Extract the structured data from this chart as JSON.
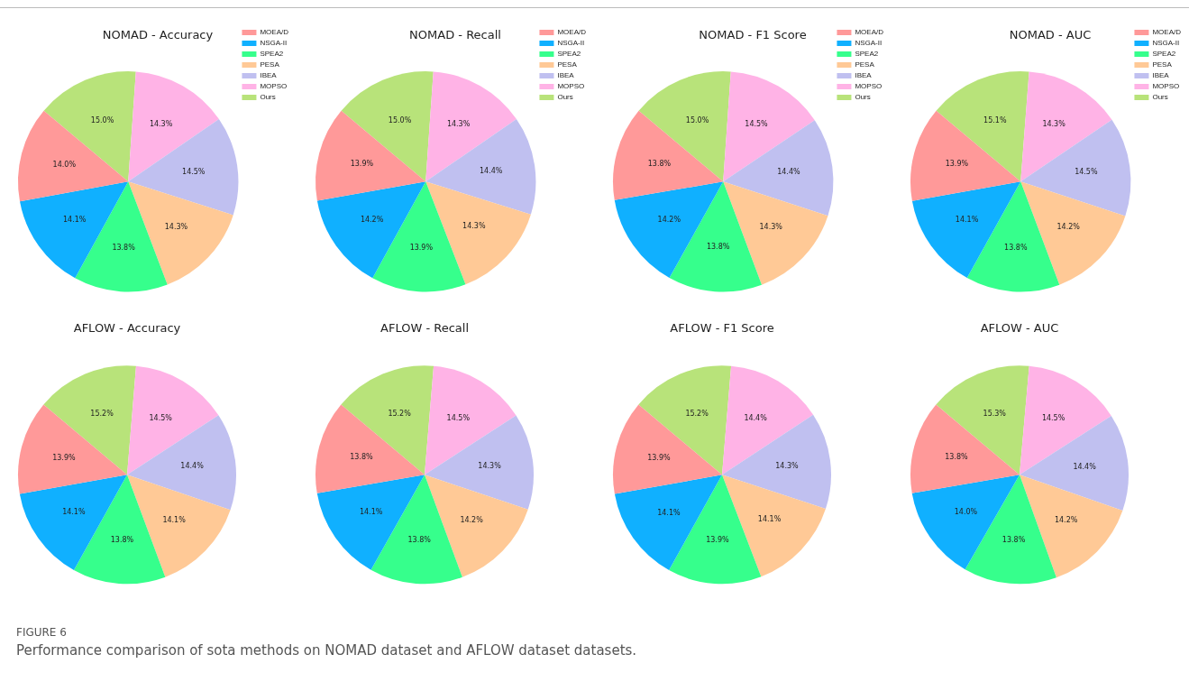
{
  "chart_data": [
    {
      "type": "pie",
      "title": "NOMAD - Accuracy",
      "legend": "top right",
      "categories": [
        "MOEA/D",
        "NSGA-II",
        "SPEA2",
        "PESA",
        "IBEA",
        "MOPSO",
        "Ours"
      ],
      "colors": [
        "#ff9999",
        "#10b0ff",
        "#36ff8c",
        "#ffc996",
        "#c0c0f0",
        "#ffb3e6",
        "#b8e37a"
      ],
      "values": [
        14.0,
        14.1,
        13.8,
        14.3,
        14.5,
        14.3,
        15.0
      ],
      "value_labels": [
        "14.0%",
        "14.1%",
        "13.8%",
        "14.3%",
        "14.5%",
        "14.3%",
        "15.0%"
      ]
    },
    {
      "type": "pie",
      "title": "NOMAD - Recall",
      "legend": "top right",
      "categories": [
        "MOEA/D",
        "NSGA-II",
        "SPEA2",
        "PESA",
        "IBEA",
        "MOPSO",
        "Ours"
      ],
      "colors": [
        "#ff9999",
        "#10b0ff",
        "#36ff8c",
        "#ffc996",
        "#c0c0f0",
        "#ffb3e6",
        "#b8e37a"
      ],
      "values": [
        13.9,
        14.2,
        13.9,
        14.3,
        14.4,
        14.3,
        15.0
      ],
      "value_labels": [
        "13.9%",
        "14.2%",
        "13.9%",
        "14.3%",
        "14.4%",
        "14.3%",
        "15.0%"
      ]
    },
    {
      "type": "pie",
      "title": "NOMAD - F1 Score",
      "legend": "top right",
      "categories": [
        "MOEA/D",
        "NSGA-II",
        "SPEA2",
        "PESA",
        "IBEA",
        "MOPSO",
        "Ours"
      ],
      "colors": [
        "#ff9999",
        "#10b0ff",
        "#36ff8c",
        "#ffc996",
        "#c0c0f0",
        "#ffb3e6",
        "#b8e37a"
      ],
      "values": [
        13.8,
        14.2,
        13.8,
        14.3,
        14.4,
        14.5,
        15.0
      ],
      "value_labels": [
        "13.8%",
        "14.2%",
        "13.8%",
        "14.3%",
        "14.4%",
        "14.5%",
        "15.0%"
      ]
    },
    {
      "type": "pie",
      "title": "NOMAD - AUC",
      "legend": "top right",
      "categories": [
        "MOEA/D",
        "NSGA-II",
        "SPEA2",
        "PESA",
        "IBEA",
        "MOPSO",
        "Ours"
      ],
      "colors": [
        "#ff9999",
        "#10b0ff",
        "#36ff8c",
        "#ffc996",
        "#c0c0f0",
        "#ffb3e6",
        "#b8e37a"
      ],
      "values": [
        13.9,
        14.1,
        13.8,
        14.2,
        14.5,
        14.3,
        15.1
      ],
      "value_labels": [
        "13.9%",
        "14.1%",
        "13.8%",
        "14.2%",
        "14.5%",
        "14.3%",
        "15.1%"
      ]
    },
    {
      "type": "pie",
      "title": "AFLOW - Accuracy",
      "categories": [
        null,
        null,
        null,
        null,
        null,
        null,
        null
      ],
      "colors": [
        "#ff9999",
        "#10b0ff",
        "#36ff8c",
        "#ffc996",
        "#c0c0f0",
        "#ffb3e6",
        "#b8e37a"
      ],
      "values": [
        13.9,
        14.1,
        13.8,
        14.1,
        14.4,
        14.5,
        15.2
      ],
      "value_labels": [
        "13.9%",
        "14.1%",
        "13.8%",
        "14.1%",
        "14.4%",
        "14.5%",
        "15.2%"
      ]
    },
    {
      "type": "pie",
      "title": "AFLOW - Recall",
      "categories": [
        null,
        null,
        null,
        null,
        null,
        null,
        null
      ],
      "colors": [
        "#ff9999",
        "#10b0ff",
        "#36ff8c",
        "#ffc996",
        "#c0c0f0",
        "#ffb3e6",
        "#b8e37a"
      ],
      "values": [
        13.8,
        14.1,
        13.8,
        14.2,
        14.3,
        14.5,
        15.2
      ],
      "value_labels": [
        "13.8%",
        "14.1%",
        "13.8%",
        "14.2%",
        "14.3%",
        "14.5%",
        "15.2%"
      ]
    },
    {
      "type": "pie",
      "title": "AFLOW - F1 Score",
      "categories": [
        null,
        null,
        null,
        null,
        null,
        null,
        null
      ],
      "colors": [
        "#ff9999",
        "#10b0ff",
        "#36ff8c",
        "#ffc996",
        "#c0c0f0",
        "#ffb3e6",
        "#b8e37a"
      ],
      "values": [
        13.9,
        14.1,
        13.9,
        14.1,
        14.3,
        14.4,
        15.2
      ],
      "value_labels": [
        "13.9%",
        "14.1%",
        "13.9%",
        "14.1%",
        "14.3%",
        "14.4%",
        "15.2%"
      ]
    },
    {
      "type": "pie",
      "title": "AFLOW - AUC",
      "categories": [
        null,
        null,
        null,
        null,
        null,
        null,
        null
      ],
      "colors": [
        "#ff9999",
        "#10b0ff",
        "#36ff8c",
        "#ffc996",
        "#c0c0f0",
        "#ffb3e6",
        "#b8e37a"
      ],
      "values": [
        13.8,
        14.0,
        13.8,
        14.2,
        14.4,
        14.5,
        15.3
      ],
      "value_labels": [
        "13.8%",
        "14.0%",
        "13.8%",
        "14.2%",
        "14.4%",
        "14.5%",
        "15.3%"
      ],
      "annotations": [
        "FIGURE 6",
        "Performance comparison of sota methods on NOMAD dataset and AFLOW dataset datasets."
      ]
    }
  ]
}
